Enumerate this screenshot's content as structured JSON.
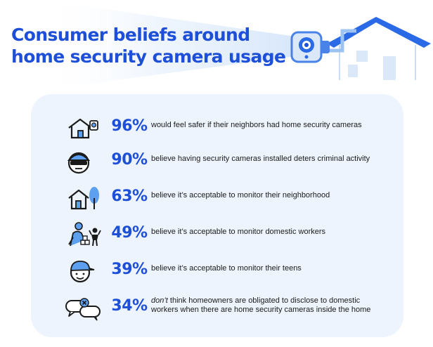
{
  "title": {
    "line1": "Consumer beliefs around",
    "line2": "home security camera usage"
  },
  "colors": {
    "brand_blue": "#1d4fd8",
    "panel_bg": "#edf4fd",
    "text": "#1a1a1a",
    "icon_fill": "#5ea0f0"
  },
  "stats": [
    {
      "percent": "96%",
      "text": "would feel safer if their neighbors had home security cameras",
      "icon": "house-camera-icon"
    },
    {
      "percent": "90%",
      "text": "believe having security cameras installed deters criminal activity",
      "icon": "burglar-icon"
    },
    {
      "percent": "63%",
      "text": "believe it’s acceptable to monitor their neighborhood",
      "icon": "house-tree-icon"
    },
    {
      "percent": "49%",
      "text": "believe it’s acceptable to monitor domestic workers",
      "icon": "domestic-worker-icon"
    },
    {
      "percent": "39%",
      "text": "believe it’s acceptable to monitor their teens",
      "icon": "teen-icon"
    },
    {
      "percent": "34%",
      "text_italic": "don’t",
      "text_rest": " think homeowners are obligated to disclose to domestic workers when there are home security cameras inside the home",
      "icon": "speech-bubbles-icon"
    }
  ]
}
